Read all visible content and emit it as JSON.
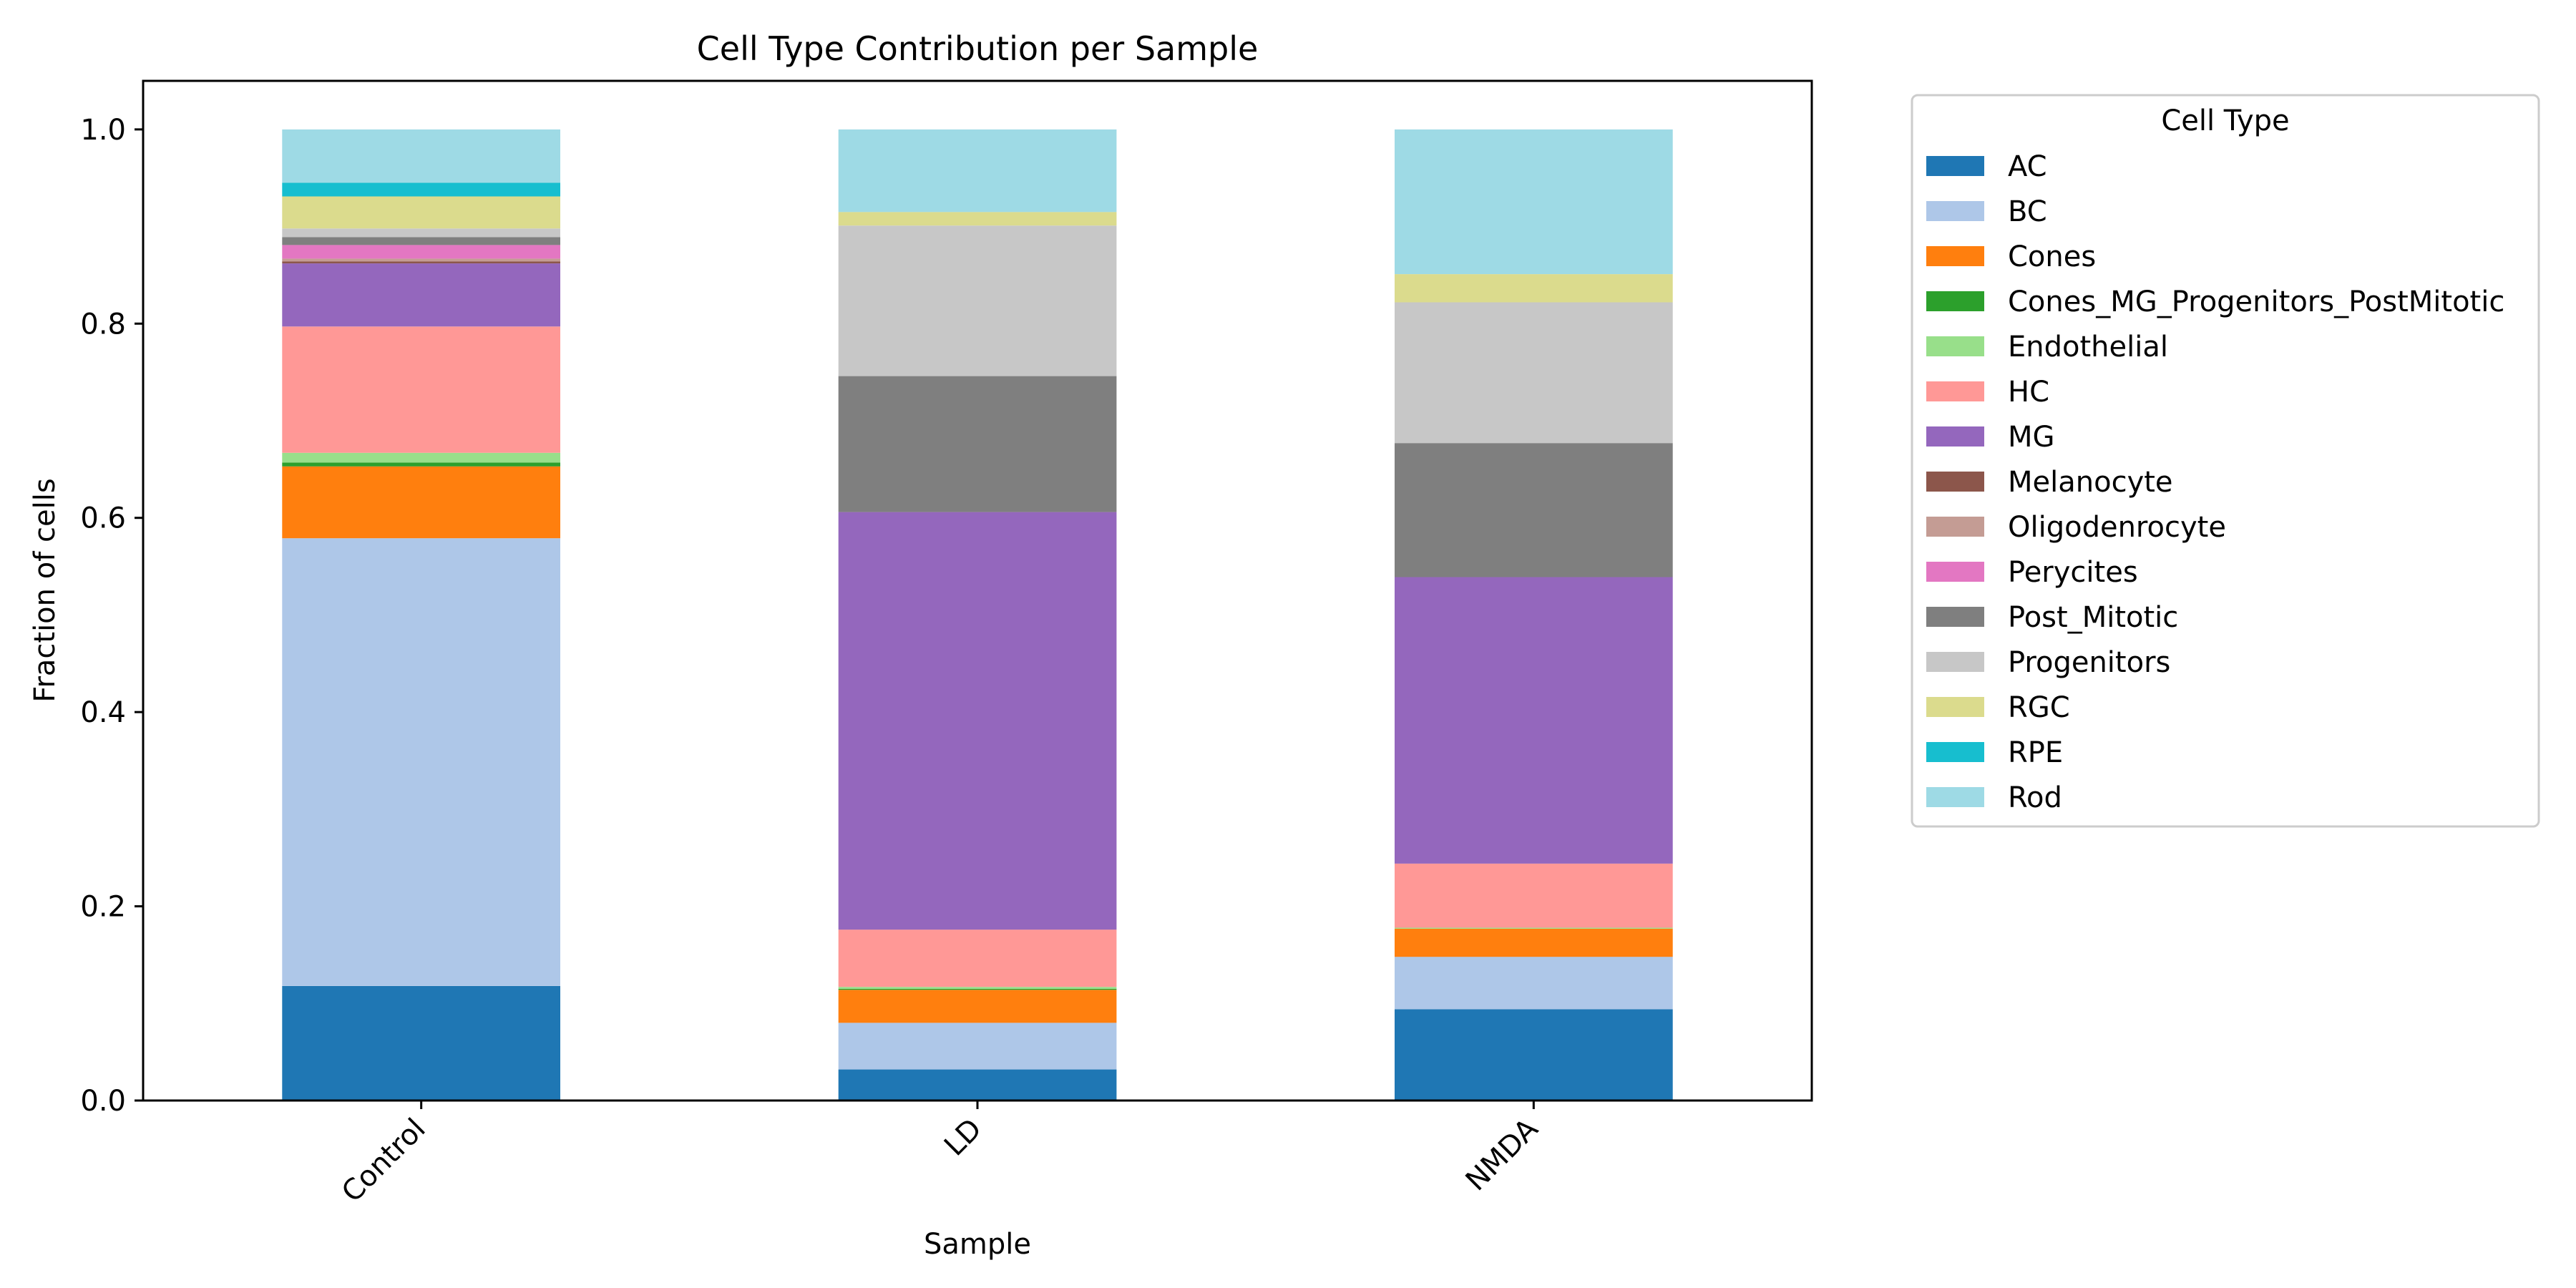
{
  "chart_data": {
    "type": "bar",
    "stacked": true,
    "title": "Cell Type Contribution per Sample",
    "xlabel": "Sample",
    "ylabel": "Fraction of cells",
    "ylim": [
      0,
      1.05
    ],
    "yticks": [
      "0.0",
      "0.2",
      "0.4",
      "0.6",
      "0.8",
      "1.0"
    ],
    "categories": [
      "Control",
      "LD",
      "NMDA"
    ],
    "legend_title": "Cell Type",
    "legend_position": "outside-right",
    "series": [
      {
        "name": "AC",
        "color": "#1f77b4",
        "values": [
          0.118,
          0.032,
          0.094
        ]
      },
      {
        "name": "BC",
        "color": "#aec7e8",
        "values": [
          0.461,
          0.048,
          0.054
        ]
      },
      {
        "name": "Cones",
        "color": "#ff7f0e",
        "values": [
          0.074,
          0.034,
          0.029
        ]
      },
      {
        "name": "Cones_MG_Progenitors_PostMitotic",
        "color": "#2ca02c",
        "values": [
          0.004,
          0.001,
          0.0
        ]
      },
      {
        "name": "Endothelial",
        "color": "#98df8a",
        "values": [
          0.01,
          0.002,
          0.001
        ]
      },
      {
        "name": "HC",
        "color": "#ff9896",
        "values": [
          0.13,
          0.059,
          0.066
        ]
      },
      {
        "name": "MG",
        "color": "#9467bd",
        "values": [
          0.065,
          0.43,
          0.295
        ]
      },
      {
        "name": "Melanocyte",
        "color": "#8c564b",
        "values": [
          0.002,
          0.0,
          0.0
        ]
      },
      {
        "name": "Oligodenrocyte",
        "color": "#c49c94",
        "values": [
          0.003,
          0.0,
          0.0
        ]
      },
      {
        "name": "Perycites",
        "color": "#e377c2",
        "values": [
          0.014,
          0.0,
          0.0
        ]
      },
      {
        "name": "Post_Mitotic",
        "color": "#7f7f7f",
        "values": [
          0.008,
          0.14,
          0.138
        ]
      },
      {
        "name": "Progenitors",
        "color": "#c7c7c7",
        "values": [
          0.009,
          0.155,
          0.145
        ]
      },
      {
        "name": "RGC",
        "color": "#dbdb8d",
        "values": [
          0.033,
          0.014,
          0.029
        ]
      },
      {
        "name": "RPE",
        "color": "#17becf",
        "values": [
          0.014,
          0.0,
          0.0
        ]
      },
      {
        "name": "Rod",
        "color": "#9edae5",
        "values": [
          0.055,
          0.085,
          0.149
        ]
      }
    ]
  }
}
